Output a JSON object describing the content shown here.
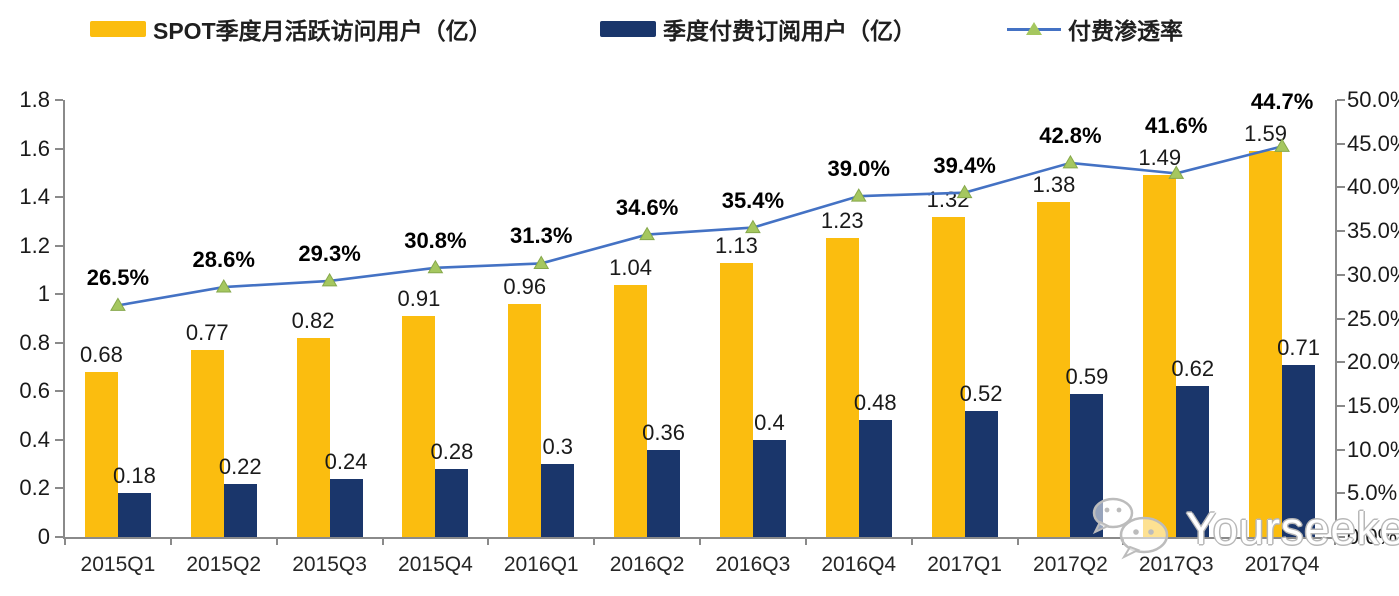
{
  "legend": {
    "mau": "SPOT季度月活跃访问用户（亿）",
    "subs": "季度付费订阅用户（亿）",
    "penetration": "付费渗透率"
  },
  "watermark": {
    "text": "Yourseeker",
    "icon": "wechat-icon"
  },
  "colors": {
    "mau_bar": "#FBBD0F",
    "subs_bar": "#1A366B",
    "line": "#4472C4",
    "marker_fill": "#A5C75F",
    "marker_edge": "#86A84B",
    "axis": "#8a8a8a",
    "label_text": "#1a1a1a"
  },
  "chart_data": {
    "type": "bar",
    "subtype": "grouped-bars-with-line-overlay-dual-axis",
    "title": "",
    "categories": [
      "2015Q1",
      "2015Q2",
      "2015Q3",
      "2015Q4",
      "2016Q1",
      "2016Q2",
      "2016Q3",
      "2016Q4",
      "2017Q1",
      "2017Q2",
      "2017Q3",
      "2017Q4"
    ],
    "series": [
      {
        "name": "SPOT季度月活跃访问用户（亿）",
        "type": "bar",
        "axis": "left",
        "color": "#FBBD0F",
        "values": [
          0.68,
          0.77,
          0.82,
          0.91,
          0.96,
          1.04,
          1.13,
          1.23,
          1.32,
          1.38,
          1.49,
          1.59
        ],
        "labels": [
          "0.68",
          "0.77",
          "0.82",
          "0.91",
          "0.96",
          "1.04",
          "1.13",
          "1.23",
          "1.32",
          "1.38",
          "1.49",
          "1.59"
        ]
      },
      {
        "name": "季度付费订阅用户（亿）",
        "type": "bar",
        "axis": "left",
        "color": "#1A366B",
        "values": [
          0.18,
          0.22,
          0.24,
          0.28,
          0.3,
          0.36,
          0.4,
          0.48,
          0.52,
          0.59,
          0.62,
          0.71
        ],
        "labels": [
          "0.18",
          "0.22",
          "0.24",
          "0.28",
          "0.3",
          "0.36",
          "0.4",
          "0.48",
          "0.52",
          "0.59",
          "0.62",
          "0.71"
        ]
      },
      {
        "name": "付费渗透率",
        "type": "line",
        "axis": "right",
        "color": "#4472C4",
        "marker": "triangle",
        "marker_color": "#A5C75F",
        "values": [
          26.5,
          28.6,
          29.3,
          30.8,
          31.3,
          34.6,
          35.4,
          39.0,
          39.4,
          42.8,
          41.6,
          44.7
        ],
        "labels": [
          "26.5%",
          "28.6%",
          "29.3%",
          "30.8%",
          "31.3%",
          "34.6%",
          "35.4%",
          "39.0%",
          "39.4%",
          "42.8%",
          "41.6%",
          "44.7%"
        ]
      }
    ],
    "left_axis": {
      "min": 0,
      "max": 1.8,
      "step": 0.2,
      "ticks": [
        "0",
        "0.2",
        "0.4",
        "0.6",
        "0.8",
        "1",
        "1.2",
        "1.4",
        "1.6",
        "1.8"
      ]
    },
    "right_axis": {
      "min": 0,
      "max": 50,
      "step": 5,
      "ticks": [
        "0.0%",
        "5.0%",
        "10.0%",
        "15.0%",
        "20.0%",
        "25.0%",
        "30.0%",
        "35.0%",
        "40.0%",
        "45.0%",
        "50.0%"
      ]
    },
    "grid": false,
    "legend_position": "top"
  }
}
